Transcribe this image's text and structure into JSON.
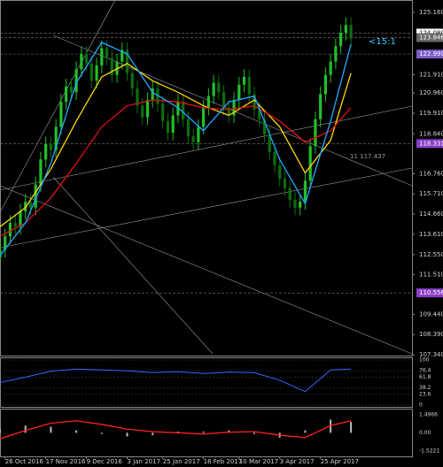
{
  "chart_data": {
    "type": "candlestick",
    "xlim": [
      0,
      81
    ],
    "xticks": [
      {
        "value": 1,
        "label": "26 Oct 2016"
      },
      {
        "value": 9,
        "label": "17 Nov 2016"
      },
      {
        "value": 17,
        "label": "9 Dec 2016"
      },
      {
        "value": 25,
        "label": "3 Jan 2017"
      },
      {
        "value": 32,
        "label": "25 Jan 2017"
      },
      {
        "value": 40,
        "label": "16 Feb 2017"
      },
      {
        "value": 47,
        "label": "10 Mar 2017"
      },
      {
        "value": 55,
        "label": "3 Apr 2017"
      },
      {
        "value": 63,
        "label": "25 Apr 2017"
      }
    ],
    "ylim": [
      107.34,
      125.16
    ],
    "yticks": [
      {
        "value": 125.16,
        "label": "125.160"
      },
      {
        "value": 121.91,
        "label": "121.910"
      },
      {
        "value": 120.96,
        "label": "120.960"
      },
      {
        "value": 119.91,
        "label": "119.910"
      },
      {
        "value": 118.84,
        "label": "118.840"
      },
      {
        "value": 116.76,
        "label": "116.760"
      },
      {
        "value": 115.71,
        "label": "115.710"
      },
      {
        "value": 114.66,
        "label": "114.660"
      },
      {
        "value": 113.61,
        "label": "113.610"
      },
      {
        "value": 112.55,
        "label": "112.550"
      },
      {
        "value": 111.51,
        "label": "111.510"
      },
      {
        "value": 109.44,
        "label": "109.440"
      },
      {
        "value": 108.39,
        "label": "108.390"
      },
      {
        "value": 107.34,
        "label": "107.340"
      }
    ],
    "levels": [
      {
        "value": 124.08,
        "label": "124.080",
        "color": "#ffffff"
      },
      {
        "value": 123.846,
        "label": "123.846",
        "color": "#666666"
      },
      {
        "value": 122.99,
        "label": "122.990",
        "color": "#7a5cc8"
      },
      {
        "value": 118.331,
        "label": "118.331",
        "color": "#8a3fc8"
      },
      {
        "value": 110.556,
        "label": "110.556",
        "color": "#8a3fc8"
      }
    ],
    "annotations": [
      {
        "text": "<15:1",
        "color": "#33ccff"
      },
      {
        "text": "11 117.437",
        "color": "#999999"
      }
    ],
    "up_color": "#22c02a",
    "down_color": "#0c6e10",
    "open": [
      112.4,
      112.8,
      113.5,
      114.2,
      114.0,
      114.8,
      115.3,
      115.0,
      116.2,
      117.5,
      118.3,
      118.0,
      119.2,
      120.5,
      121.3,
      121.0,
      122.2,
      123.0,
      122.5,
      121.6,
      122.4,
      123.3,
      122.8,
      121.9,
      122.6,
      123.2,
      122.0,
      121.2,
      120.3,
      119.7,
      120.6,
      121.2,
      120.4,
      119.5,
      118.9,
      119.8,
      120.5,
      119.6,
      118.7,
      118.4,
      119.2,
      120.2,
      120.8,
      121.5,
      121.0,
      120.2,
      119.8,
      120.6,
      121.4,
      121.8,
      120.9,
      120.1,
      119.6,
      118.8,
      117.9,
      117.2,
      116.5,
      116.0,
      115.4,
      115.0,
      115.3,
      116.4,
      118.2,
      119.6,
      120.9,
      121.9,
      122.6,
      123.4,
      124.1,
      124.5
    ],
    "high": [
      113.2,
      113.9,
      114.6,
      114.6,
      115.2,
      115.7,
      115.7,
      116.6,
      117.9,
      118.7,
      118.7,
      119.6,
      120.9,
      121.7,
      121.7,
      122.6,
      123.4,
      123.4,
      122.9,
      122.8,
      123.7,
      123.7,
      123.2,
      123.0,
      123.6,
      123.6,
      122.4,
      121.6,
      120.7,
      121.0,
      121.6,
      121.6,
      120.8,
      119.9,
      120.2,
      120.9,
      120.9,
      120.0,
      119.1,
      119.6,
      120.6,
      121.2,
      121.9,
      121.9,
      121.4,
      120.6,
      121.0,
      121.8,
      122.2,
      122.2,
      121.3,
      120.5,
      120.0,
      119.2,
      118.3,
      117.6,
      116.9,
      116.4,
      115.8,
      115.7,
      116.8,
      118.6,
      120.0,
      121.3,
      122.3,
      123.0,
      123.8,
      124.5,
      124.9,
      124.9
    ],
    "low": [
      112.0,
      112.4,
      113.1,
      113.6,
      113.6,
      114.4,
      114.6,
      114.6,
      115.8,
      117.1,
      117.6,
      117.6,
      118.8,
      120.1,
      120.6,
      120.6,
      121.8,
      122.1,
      121.2,
      121.2,
      122.0,
      122.4,
      121.5,
      121.5,
      122.2,
      121.6,
      120.8,
      119.9,
      119.3,
      119.3,
      120.2,
      120.0,
      119.1,
      118.5,
      118.5,
      119.4,
      119.2,
      118.3,
      118.0,
      118.0,
      118.8,
      119.8,
      120.4,
      120.6,
      119.8,
      119.4,
      119.4,
      120.2,
      121.0,
      120.5,
      119.7,
      119.2,
      118.4,
      117.5,
      116.8,
      116.1,
      115.6,
      115.0,
      114.6,
      114.6,
      114.9,
      116.0,
      117.8,
      119.2,
      120.5,
      121.5,
      122.2,
      123.0,
      123.7,
      123.4
    ],
    "close": [
      112.8,
      113.5,
      114.2,
      114.0,
      114.8,
      115.3,
      115.0,
      116.2,
      117.5,
      118.3,
      118.0,
      119.2,
      120.5,
      121.3,
      121.0,
      122.2,
      123.0,
      122.5,
      121.6,
      122.4,
      123.3,
      122.8,
      121.9,
      122.6,
      123.2,
      122.0,
      121.2,
      120.3,
      119.7,
      120.6,
      121.2,
      120.4,
      119.5,
      118.9,
      119.8,
      120.5,
      119.6,
      118.7,
      118.4,
      119.2,
      120.2,
      120.8,
      121.5,
      121.0,
      120.2,
      119.8,
      120.6,
      121.4,
      121.8,
      120.9,
      120.1,
      119.6,
      118.8,
      117.9,
      117.2,
      116.5,
      116.0,
      115.4,
      115.0,
      115.3,
      116.4,
      118.2,
      119.6,
      120.9,
      121.9,
      122.6,
      123.4,
      124.1,
      124.5,
      123.8
    ],
    "lines": [
      {
        "color": "#ffd700",
        "x": [
          0,
          5,
          10,
          15,
          20,
          25,
          30,
          35,
          40,
          45,
          50,
          55,
          60,
          65,
          69
        ],
        "values": [
          114,
          115,
          117,
          119.5,
          121.8,
          122.5,
          121.6,
          121.0,
          120.3,
          119.8,
          120.6,
          119.2,
          116.8,
          118.5,
          122.0
        ]
      },
      {
        "color": "#e01010",
        "x": [
          0,
          5,
          10,
          15,
          20,
          25,
          30,
          35,
          40,
          45,
          50,
          55,
          60,
          65,
          69
        ],
        "values": [
          113.5,
          114.2,
          115.5,
          117.3,
          119.2,
          120.3,
          120.6,
          120.5,
          120.2,
          120.1,
          120.3,
          119.5,
          118.4,
          119.0,
          120.2
        ]
      },
      {
        "color": "#1fa8ff",
        "x": [
          0,
          5,
          10,
          15,
          20,
          25,
          30,
          35,
          40,
          45,
          50,
          55,
          60,
          65,
          69
        ],
        "values": [
          112.5,
          114.2,
          117.3,
          121.5,
          123.6,
          123.0,
          121.0,
          120.2,
          119.0,
          120.5,
          120.8,
          117.5,
          115.2,
          119.5,
          123.5
        ]
      }
    ],
    "osc": {
      "ylim": [
        0,
        100
      ],
      "yticks": [
        100,
        76.4,
        61.8,
        38.2,
        23.6,
        0
      ],
      "color": "#3a66ff",
      "x": [
        0,
        5,
        10,
        15,
        20,
        25,
        30,
        35,
        40,
        45,
        50,
        55,
        60,
        65,
        69
      ],
      "values": [
        50,
        62,
        75,
        80,
        78,
        76,
        72,
        74,
        70,
        73,
        72,
        55,
        30,
        78,
        80
      ]
    },
    "macd": {
      "ylim": [
        -1.5221,
        1.4966
      ],
      "yticks": [
        1.4966,
        {
          "value": 0,
          "label": "0.00"
        },
        -1.5221
      ],
      "line_color": "#ff2020",
      "bar_color": "#bbbbbb",
      "x": [
        0,
        5,
        10,
        15,
        20,
        25,
        30,
        35,
        40,
        45,
        50,
        55,
        60,
        65,
        69
      ],
      "signal": [
        -0.5,
        0.2,
        0.8,
        1.0,
        0.7,
        0.3,
        0.1,
        0.0,
        -0.1,
        0.05,
        0.1,
        -0.2,
        -0.4,
        0.6,
        1.0
      ],
      "hist": [
        0.3,
        0.6,
        0.5,
        0.2,
        -0.1,
        -0.3,
        -0.2,
        0.1,
        0.1,
        0.2,
        -0.1,
        -0.4,
        0.2,
        1.1,
        0.9
      ]
    }
  }
}
